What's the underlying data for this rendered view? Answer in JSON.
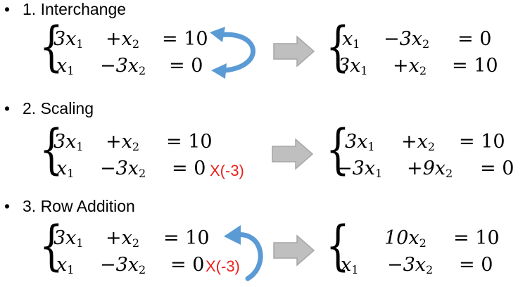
{
  "sections": [
    {
      "heading": "1. Interchange",
      "left": {
        "r1": [
          "3x",
          "1",
          "+x",
          "2",
          "= 10"
        ],
        "r2": [
          "x",
          "1",
          "−3x",
          "2",
          "= 0"
        ]
      },
      "right": {
        "r1": [
          "x",
          "1",
          "−3x",
          "2",
          "= 0"
        ],
        "r2": [
          "3x",
          "1",
          "+x",
          "2",
          "= 10"
        ]
      }
    },
    {
      "heading": "2. Scaling",
      "left": {
        "r1": [
          "3x",
          "1",
          "+x",
          "2",
          "= 10"
        ],
        "r2": [
          "x",
          "1",
          "−3x",
          "2",
          "= 0"
        ]
      },
      "multiplier": "X(-3)",
      "right": {
        "r1": [
          "3x",
          "1",
          "+x",
          "2",
          "= 10"
        ],
        "r2": [
          "−3x",
          "1",
          "+9x",
          "2",
          "= 0"
        ]
      }
    },
    {
      "heading": "3. Row Addition",
      "left": {
        "r1": [
          "3x",
          "1",
          "+x",
          "2",
          "= 10"
        ],
        "r2": [
          "x",
          "1",
          "−3x",
          "2",
          "= 0"
        ]
      },
      "multiplier": "X(-3)",
      "right": {
        "r1": [
          "",
          "",
          "10x",
          "2",
          "= 10"
        ],
        "r2": [
          "x",
          "1",
          "−3x",
          "2",
          "= 0"
        ]
      }
    }
  ],
  "colors": {
    "curve": "#5b9bd5",
    "multiplier": "#e8201c",
    "arrow_fill": "#bfbfbf",
    "arrow_stroke": "#a6a6a6"
  },
  "bullet": "•",
  "brace": "{"
}
